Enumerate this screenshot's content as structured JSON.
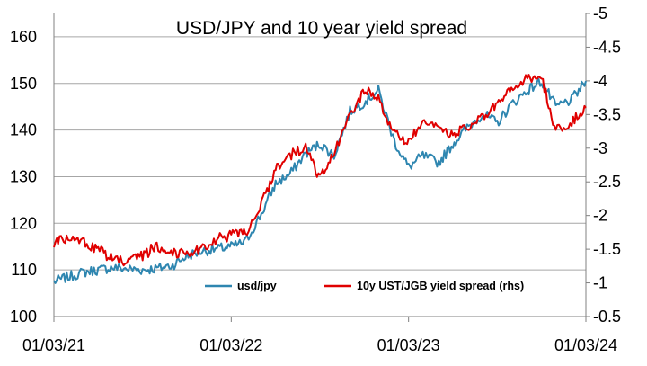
{
  "chart_data": {
    "type": "line",
    "title": "USD/JPY and 10 year yield spread",
    "x_tick_labels": [
      "01/03/21",
      "01/03/22",
      "01/03/23",
      "01/03/24"
    ],
    "y_left": {
      "range": [
        100,
        165
      ],
      "ticks": [
        100,
        110,
        120,
        130,
        140,
        150,
        160
      ]
    },
    "y_right": {
      "range": [
        -0.5,
        -5
      ],
      "inverted": true,
      "ticks": [
        "-0.5",
        "-1",
        "-1.5",
        "-2",
        "-2.5",
        "-3",
        "-3.5",
        "-4",
        "-4.5",
        "-5"
      ]
    },
    "grid": "horizontal",
    "legend_position": "bottom-right",
    "colors": {
      "usd_jpy": "#2E86B0",
      "spread": "#E00000",
      "grid": "#A6A6A6",
      "axis": "#808080"
    },
    "series": [
      {
        "name": "usd/jpy",
        "axis": "left",
        "x": [
          2021.0,
          2021.08,
          2021.17,
          2021.25,
          2021.33,
          2021.42,
          2021.5,
          2021.58,
          2021.67,
          2021.75,
          2021.83,
          2021.92,
          2022.0,
          2022.08,
          2022.17,
          2022.25,
          2022.33,
          2022.42,
          2022.5,
          2022.58,
          2022.67,
          2022.75,
          2022.83,
          2022.92,
          2023.0,
          2023.08,
          2023.17,
          2023.25,
          2023.33,
          2023.42,
          2023.5,
          2023.58,
          2023.67,
          2023.75,
          2023.83,
          2023.92,
          2024.0
        ],
        "values": [
          107.5,
          108.5,
          109.5,
          110.0,
          110.5,
          110.2,
          110.0,
          110.3,
          111.0,
          113.0,
          114.0,
          114.5,
          115.0,
          116.0,
          122.0,
          128.5,
          130.5,
          135.0,
          137.0,
          134.5,
          144.0,
          146.0,
          148.5,
          137.5,
          132.0,
          134.5,
          133.0,
          137.0,
          140.5,
          143.5,
          141.5,
          145.5,
          148.5,
          150.5,
          145.0,
          146.5,
          150.5
        ]
      },
      {
        "name": "10y UST/JGB yield spread (rhs)",
        "axis": "right",
        "x": [
          2021.0,
          2021.08,
          2021.17,
          2021.25,
          2021.33,
          2021.42,
          2021.5,
          2021.58,
          2021.67,
          2021.75,
          2021.83,
          2021.92,
          2022.0,
          2022.08,
          2022.17,
          2022.25,
          2022.33,
          2022.42,
          2022.5,
          2022.58,
          2022.67,
          2022.75,
          2022.83,
          2022.92,
          2023.0,
          2023.08,
          2023.17,
          2023.25,
          2023.33,
          2023.42,
          2023.5,
          2023.58,
          2023.67,
          2023.75,
          2023.83,
          2023.92,
          2024.0
        ],
        "values": [
          -1.6,
          -1.65,
          -1.6,
          -1.5,
          -1.35,
          -1.3,
          -1.4,
          -1.55,
          -1.45,
          -1.45,
          -1.5,
          -1.65,
          -1.7,
          -1.75,
          -2.15,
          -2.7,
          -2.9,
          -3.0,
          -2.55,
          -2.9,
          -3.5,
          -3.85,
          -3.75,
          -3.2,
          -3.1,
          -3.35,
          -3.3,
          -3.2,
          -3.3,
          -3.45,
          -3.65,
          -3.85,
          -4.05,
          -4.05,
          -3.25,
          -3.4,
          -3.6
        ]
      }
    ]
  }
}
